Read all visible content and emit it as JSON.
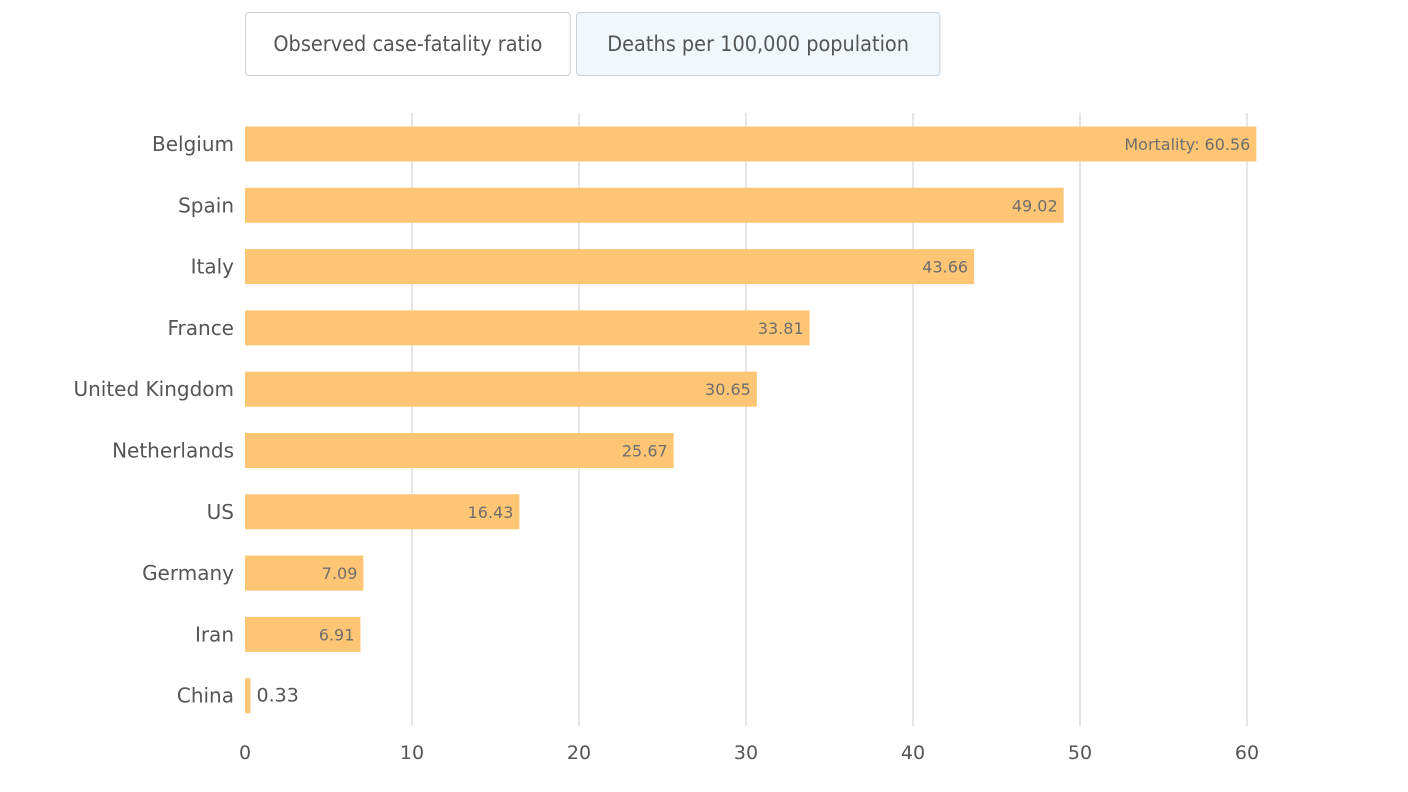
{
  "tabs": [
    {
      "label": "Observed case-fatality ratio",
      "active": false
    },
    {
      "label": "Deaths per 100,000 population",
      "active": true
    }
  ],
  "colors": {
    "bar": "#fec574",
    "grid": "#cccccc",
    "text": "#555555",
    "value_label": "#6e6e6e"
  },
  "chart_data": {
    "type": "bar",
    "orientation": "horizontal",
    "title": "",
    "xlabel": "",
    "ylabel": "",
    "xlim": [
      0,
      60
    ],
    "xticks": [
      0,
      10,
      20,
      30,
      40,
      50,
      60
    ],
    "grid": true,
    "categories": [
      "Belgium",
      "Spain",
      "Italy",
      "France",
      "United Kingdom",
      "Netherlands",
      "US",
      "Germany",
      "Iran",
      "China"
    ],
    "values": [
      60.56,
      49.02,
      43.66,
      33.81,
      30.65,
      25.67,
      16.43,
      7.09,
      6.91,
      0.33
    ],
    "value_labels": [
      "Mortality: 60.56",
      "49.02",
      "43.66",
      "33.81",
      "30.65",
      "25.67",
      "16.43",
      "7.09",
      "6.91",
      "0.33"
    ]
  }
}
